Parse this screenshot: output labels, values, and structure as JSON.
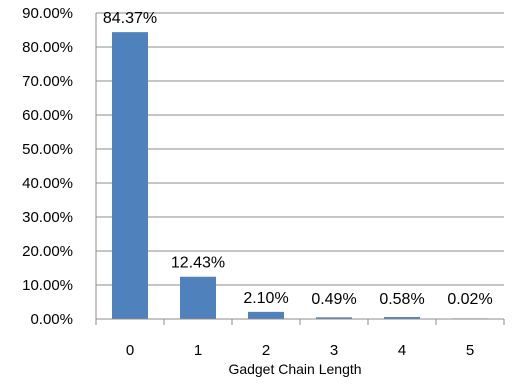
{
  "chart_data": {
    "type": "bar",
    "categories": [
      "0",
      "1",
      "2",
      "3",
      "4",
      "5"
    ],
    "values": [
      84.37,
      12.43,
      2.1,
      0.49,
      0.58,
      0.02
    ],
    "data_labels": [
      "84.37%",
      "12.43%",
      "2.10%",
      "0.49%",
      "0.58%",
      "0.02%"
    ],
    "y_ticks": [
      "0.00%",
      "10.00%",
      "20.00%",
      "30.00%",
      "40.00%",
      "50.00%",
      "60.00%",
      "70.00%",
      "80.00%",
      "90.00%"
    ],
    "xlabel": "Gadget Chain Length",
    "ylim": [
      0,
      90
    ],
    "grid": true,
    "colors": {
      "bar": "#4f81bd"
    }
  }
}
